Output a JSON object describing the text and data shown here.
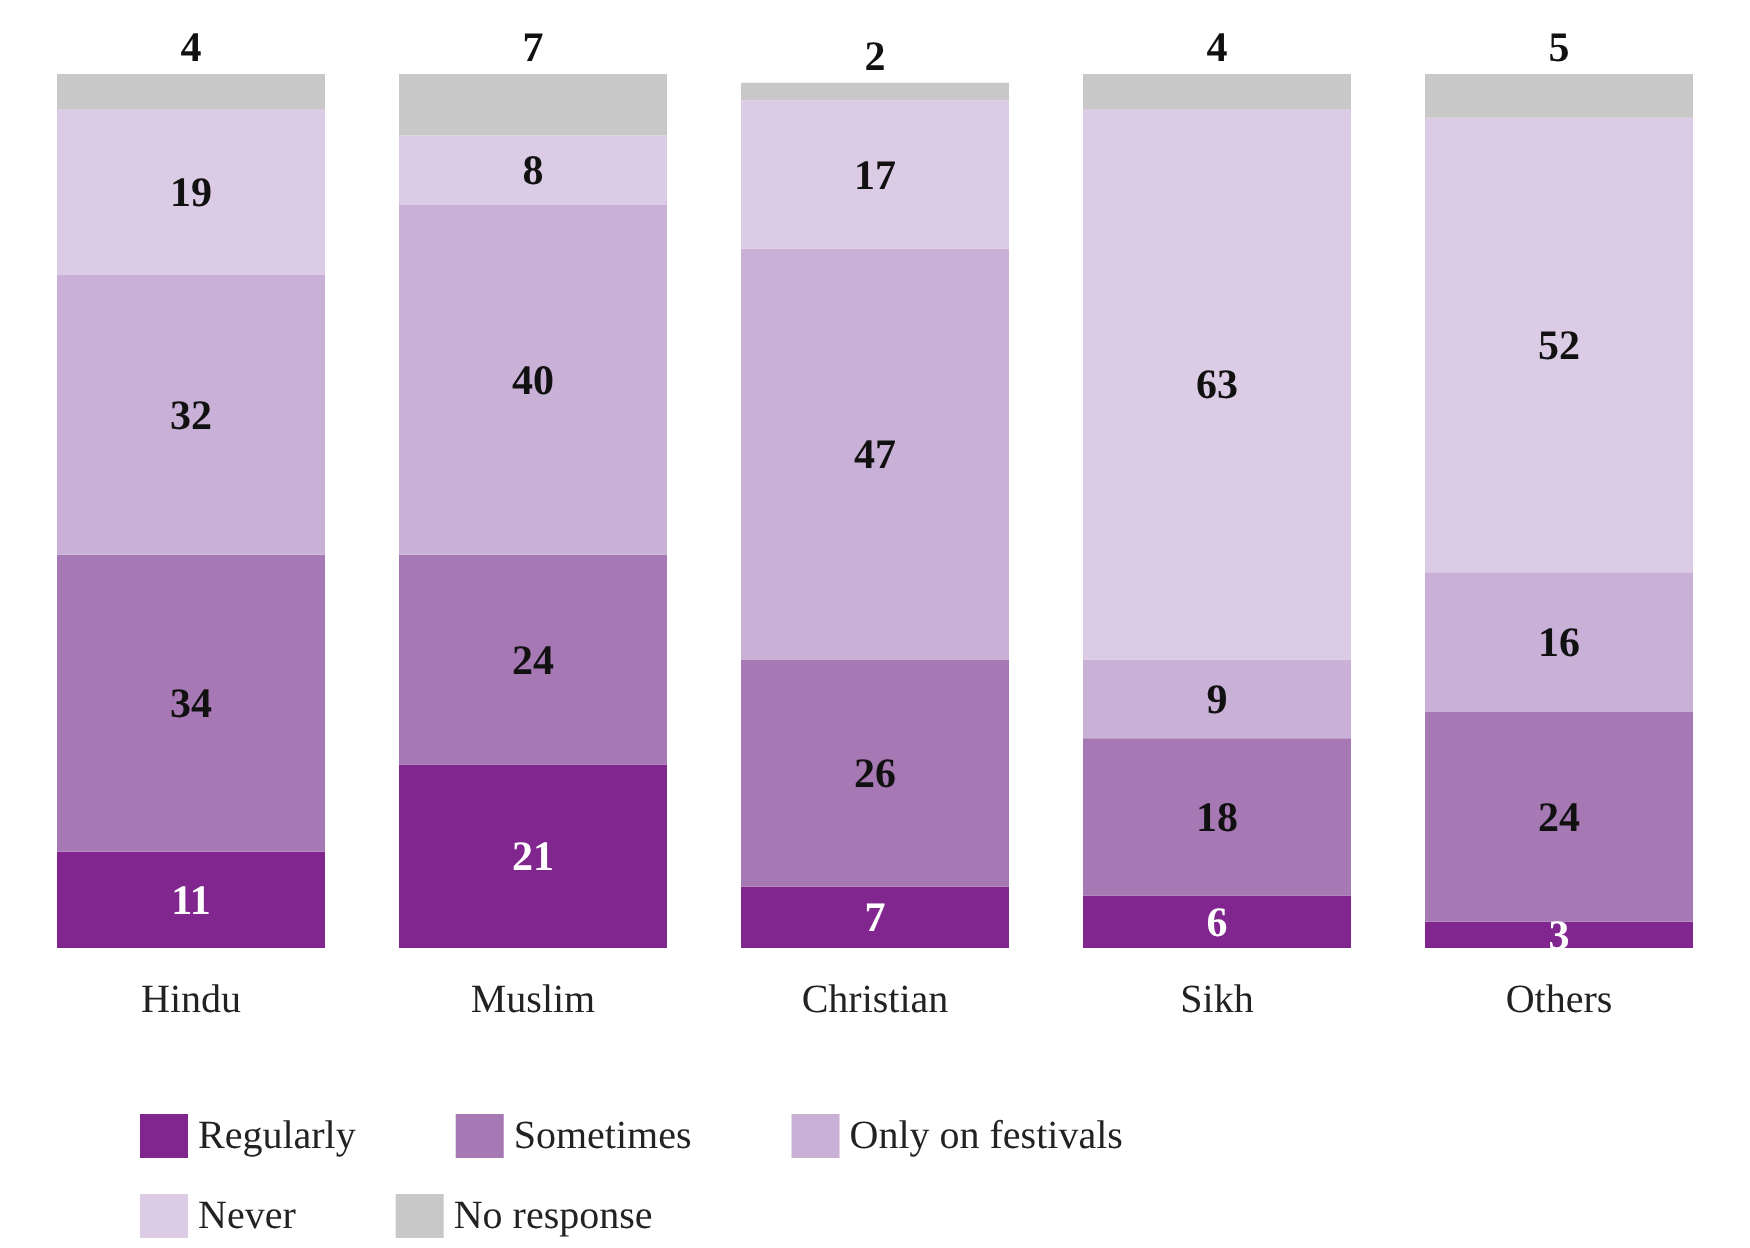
{
  "chart_data": {
    "type": "bar",
    "stacked": true,
    "categories": [
      "Hindu",
      "Muslim",
      "Christian",
      "Sikh",
      "Others"
    ],
    "series": [
      {
        "name": "Regularly",
        "color": "#82268f",
        "values": [
          11,
          21,
          7,
          6,
          3
        ]
      },
      {
        "name": "Sometimes",
        "color": "#a678b4",
        "values": [
          34,
          24,
          26,
          18,
          24
        ]
      },
      {
        "name": "Only on festivals",
        "color": "#c9b0d6",
        "values": [
          32,
          40,
          47,
          9,
          16
        ]
      },
      {
        "name": "Never",
        "color": "#dccbe4",
        "values": [
          19,
          8,
          17,
          63,
          52
        ]
      },
      {
        "name": "No response",
        "color": "#c8c8c8",
        "values": [
          4,
          7,
          2,
          4,
          5
        ]
      }
    ],
    "data_labels": true,
    "legend": "bottom"
  }
}
